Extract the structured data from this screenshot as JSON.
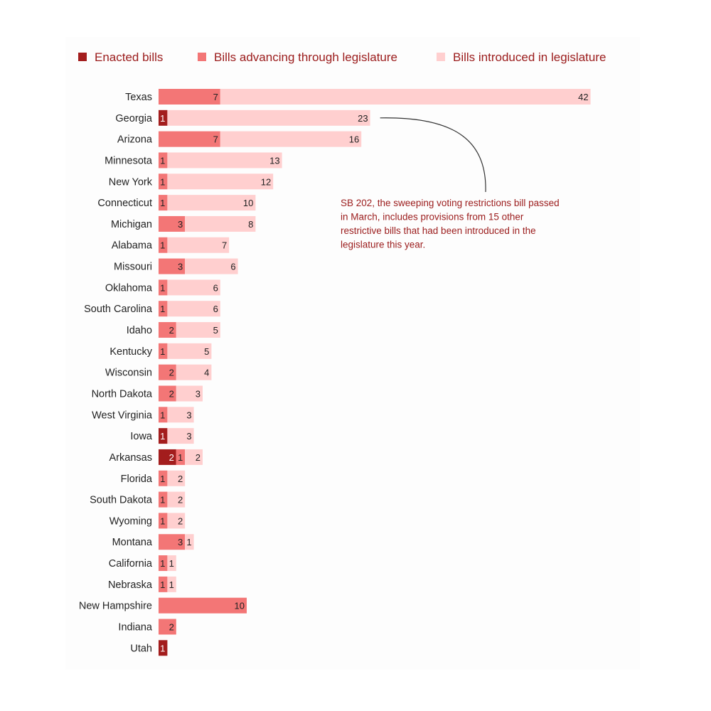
{
  "colors": {
    "enacted": "#a31d1d",
    "advancing": "#f37676",
    "introduced": "#ffcfcf",
    "annotation": "#9b1c1c",
    "legend_text": "#9b1c1c"
  },
  "chart_data": {
    "type": "bar",
    "orientation": "horizontal",
    "stacked": true,
    "title": "",
    "xlabel": "",
    "ylabel": "",
    "grid": false,
    "legend_position": "top",
    "legend": [
      {
        "key": "enacted",
        "label": "Enacted bills"
      },
      {
        "key": "advancing",
        "label": "Bills advancing through legislature"
      },
      {
        "key": "introduced",
        "label": "Bills introduced in legislature"
      }
    ],
    "categories": [
      "Texas",
      "Georgia",
      "Arizona",
      "Minnesota",
      "New York",
      "Connecticut",
      "Michigan",
      "Alabama",
      "Missouri",
      "Oklahoma",
      "South Carolina",
      "Idaho",
      "Kentucky",
      "Wisconsin",
      "North Dakota",
      "West Virginia",
      "Iowa",
      "Arkansas",
      "Florida",
      "South Dakota",
      "Wyoming",
      "Montana",
      "California",
      "Nebraska",
      "New Hampshire",
      "Indiana",
      "Utah"
    ],
    "series": [
      {
        "key": "enacted",
        "name": "Enacted bills",
        "values": [
          0,
          1,
          0,
          0,
          0,
          0,
          0,
          0,
          0,
          0,
          0,
          0,
          0,
          0,
          0,
          0,
          1,
          2,
          0,
          0,
          0,
          0,
          0,
          0,
          0,
          0,
          1
        ]
      },
      {
        "key": "advancing",
        "name": "Bills advancing through legislature",
        "values": [
          7,
          0,
          7,
          1,
          1,
          1,
          3,
          1,
          3,
          1,
          1,
          2,
          1,
          2,
          2,
          1,
          0,
          1,
          1,
          1,
          1,
          3,
          1,
          1,
          10,
          2,
          0
        ]
      },
      {
        "key": "introduced",
        "name": "Bills introduced in legislature",
        "values": [
          42,
          23,
          16,
          13,
          12,
          10,
          8,
          7,
          6,
          6,
          6,
          5,
          5,
          4,
          3,
          3,
          3,
          2,
          2,
          2,
          2,
          1,
          1,
          1,
          0,
          0,
          0
        ]
      }
    ],
    "annotation": {
      "category": "Georgia",
      "text_lines": [
        "SB 202, the sweeping voting restrictions bill passed",
        "in March, includes provisions from 15 other",
        "restrictive bills that had been introduced in the",
        "legislature this year."
      ]
    }
  }
}
